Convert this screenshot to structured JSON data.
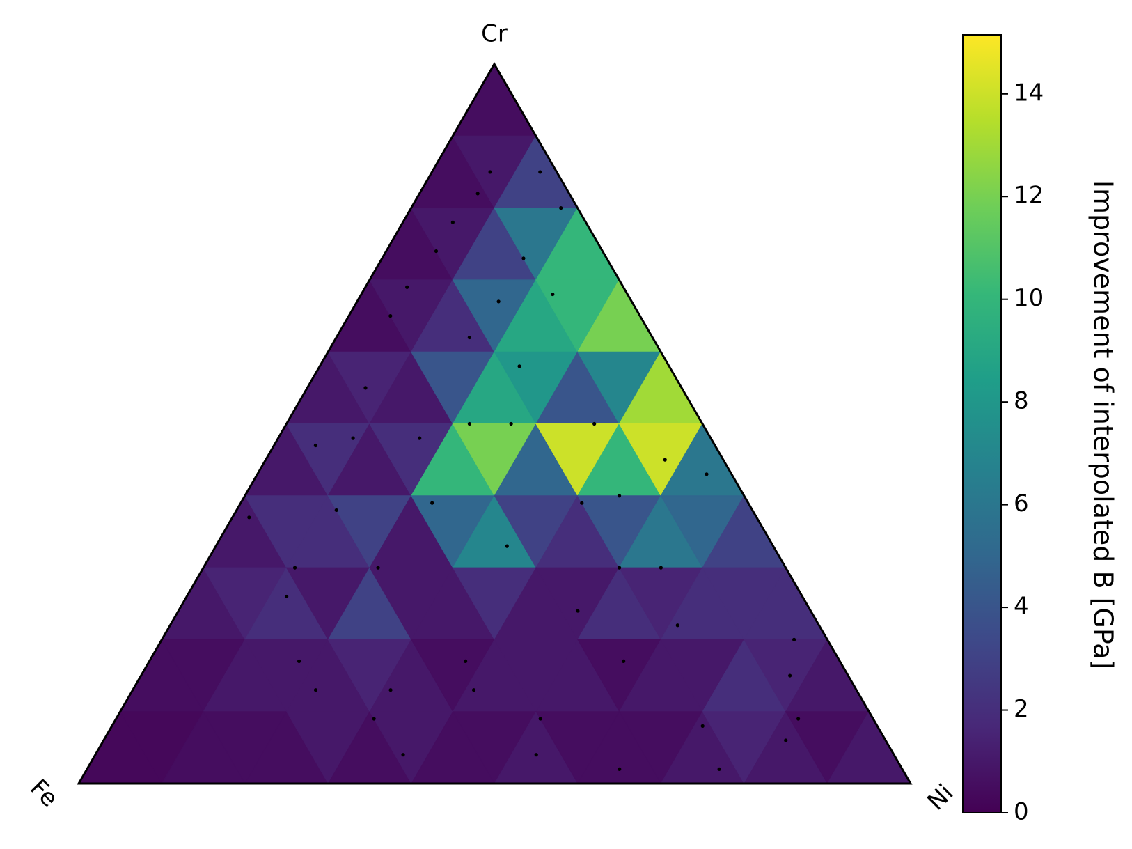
{
  "chart_data": {
    "type": "ternary-heatmap",
    "corner_labels": {
      "top": "Cr",
      "left": "Fe",
      "right": "Ni"
    },
    "colorbar_label": "Improvement of interpolated B [GPa]",
    "clim": [
      0,
      15.15
    ],
    "cticks": [
      0,
      2,
      4,
      6,
      8,
      10,
      12,
      14
    ],
    "colormap": [
      "#440154",
      "#482878",
      "#3e4989",
      "#31688e",
      "#26828e",
      "#1f9e89",
      "#35b779",
      "#6ece58",
      "#b5de2b",
      "#fde725"
    ],
    "heatmap": {
      "subdivisions": 10,
      "values": [
        [
          0.5
        ],
        [
          0.5,
          1,
          3
        ],
        [
          0.5,
          1,
          3,
          6,
          10
        ],
        [
          0.5,
          1,
          2,
          5,
          9,
          10,
          12
        ],
        [
          1,
          1.5,
          1,
          4,
          9,
          8,
          4,
          7,
          13
        ],
        [
          1,
          2,
          1,
          2,
          10,
          12,
          5,
          14,
          10,
          14,
          6
        ],
        [
          1,
          2,
          2,
          3,
          1,
          5,
          7,
          3,
          2,
          4,
          6,
          5,
          3
        ],
        [
          1,
          1.5,
          2,
          1,
          3,
          1,
          1,
          2,
          1,
          1,
          2,
          1.5,
          2,
          2,
          2
        ],
        [
          0.5,
          0.5,
          1,
          1,
          1,
          1.5,
          1,
          0.5,
          1,
          1,
          1,
          0.5,
          1,
          1,
          2,
          1.5,
          1
        ],
        [
          0.3,
          0.3,
          0.5,
          0.5,
          0.5,
          1,
          0.5,
          1,
          0.5,
          0.5,
          1,
          0.5,
          0.5,
          0.5,
          1,
          1.5,
          1,
          0.5,
          1
        ]
      ]
    },
    "points": {
      "cr": [
        85,
        85,
        82,
        78,
        80,
        74,
        73,
        69,
        67,
        65,
        62,
        58,
        55,
        50,
        50,
        50,
        48,
        45,
        43,
        47,
        37,
        38,
        39,
        39,
        40,
        30,
        30,
        33,
        30,
        30,
        26,
        24,
        20,
        22,
        17,
        17,
        17,
        15,
        13,
        13,
        13,
        9,
        9,
        9,
        8,
        4,
        4,
        2,
        2,
        6,
        48,
        68
      ],
      "ni": [
        7,
        13,
        7,
        6,
        18,
        6,
        17,
        5,
        17,
        5,
        16,
        24,
        7,
        22,
        27,
        37,
        9,
        48,
        54,
        5,
        2,
        12,
        23,
        41,
        45,
        11,
        21,
        35,
        50,
        55,
        12,
        48,
        76,
        61,
        18,
        38,
        57,
        78,
        22,
        31,
        41,
        31,
        51,
        82,
        71,
        37,
        53,
        76,
        64,
        82,
        17,
        23
      ]
    }
  }
}
